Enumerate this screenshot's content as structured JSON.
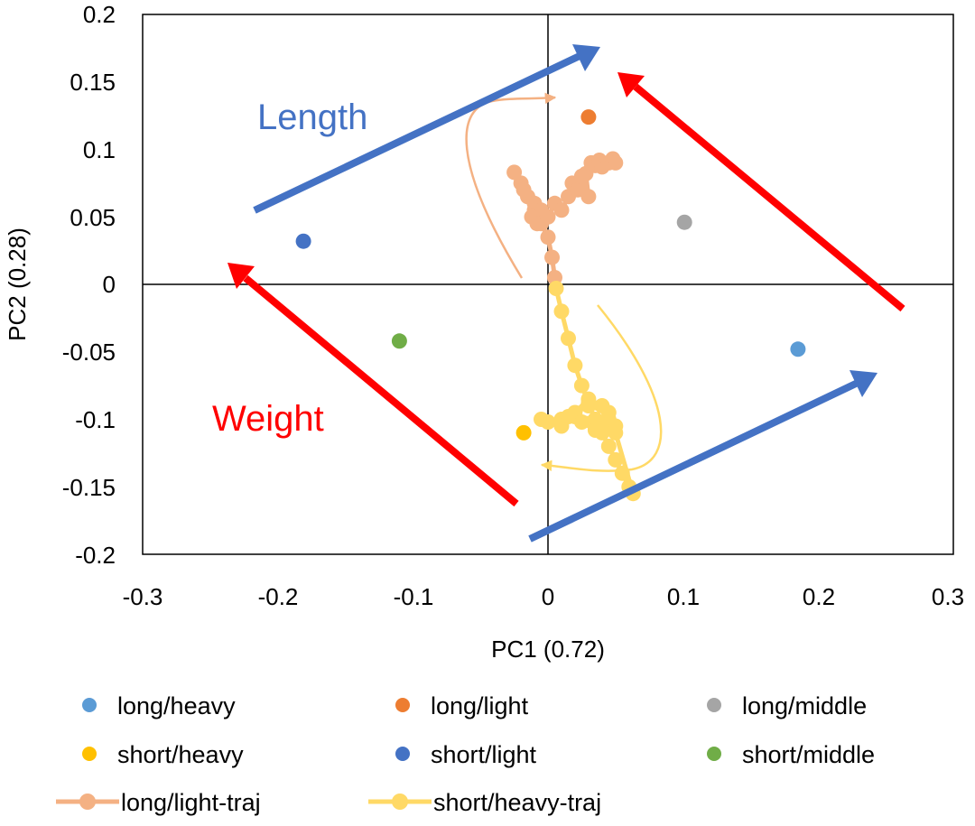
{
  "chart_data": {
    "type": "scatter",
    "xlabel": "PC1 (0.72)",
    "ylabel": "PC2 (0.28)",
    "xlim": [
      -0.3,
      0.3
    ],
    "ylim": [
      -0.2,
      0.2
    ],
    "x_ticks": [
      "-0.3",
      "-0.2",
      "-0.1",
      "0",
      "0.1",
      "0.2",
      "0.3"
    ],
    "y_ticks": [
      "0.2",
      "0.15",
      "0.1",
      "0.05",
      "0",
      "-0.05",
      "-0.1",
      "-0.15",
      "-0.2"
    ],
    "grid": false,
    "legend_position": "bottom",
    "points": [
      {
        "name": "long/heavy",
        "x": 0.185,
        "y": -0.048,
        "color": "#5b9bd5"
      },
      {
        "name": "long/light",
        "x": 0.03,
        "y": 0.124,
        "color": "#ed7d31"
      },
      {
        "name": "long/middle",
        "x": 0.101,
        "y": 0.046,
        "color": "#a5a5a5"
      },
      {
        "name": "short/heavy",
        "x": -0.018,
        "y": -0.11,
        "color": "#ffc000"
      },
      {
        "name": "short/light",
        "x": -0.181,
        "y": 0.032,
        "color": "#4472c4"
      },
      {
        "name": "short/middle",
        "x": -0.11,
        "y": -0.042,
        "color": "#70ad47"
      }
    ],
    "series": [
      {
        "name": "long/light-traj",
        "color": "#f4b183",
        "x": [
          0.005,
          0.003,
          0.0,
          -0.005,
          -0.01,
          -0.015,
          -0.02,
          -0.025,
          -0.018,
          -0.01,
          -0.005,
          -0.012,
          -0.008,
          0.0,
          0.005,
          0.01,
          0.015,
          0.018,
          0.022,
          0.025,
          0.028,
          0.03,
          0.025,
          0.032,
          0.035,
          0.038,
          0.04,
          0.045,
          0.048,
          0.05
        ],
        "y": [
          0.005,
          0.02,
          0.035,
          0.045,
          0.055,
          0.065,
          0.075,
          0.083,
          0.07,
          0.06,
          0.055,
          0.05,
          0.045,
          0.05,
          0.06,
          0.055,
          0.065,
          0.075,
          0.07,
          0.08,
          0.082,
          0.065,
          0.08,
          0.09,
          0.088,
          0.092,
          0.087,
          0.09,
          0.093,
          0.09
        ]
      },
      {
        "name": "short/heavy-traj",
        "color": "#ffd966",
        "x": [
          0.006,
          0.01,
          0.015,
          0.02,
          0.025,
          0.03,
          0.035,
          0.04,
          0.045,
          0.05,
          0.055,
          0.06,
          0.063,
          0.05,
          0.035,
          0.02,
          0.01,
          0.0,
          -0.005,
          0.01,
          0.02,
          0.03,
          0.04,
          0.045,
          0.05,
          0.035,
          0.025,
          0.015,
          0.03,
          0.045
        ],
        "y": [
          -0.003,
          -0.02,
          -0.04,
          -0.06,
          -0.075,
          -0.088,
          -0.1,
          -0.11,
          -0.12,
          -0.13,
          -0.14,
          -0.15,
          -0.155,
          -0.11,
          -0.1,
          -0.098,
          -0.1,
          -0.102,
          -0.1,
          -0.105,
          -0.095,
          -0.085,
          -0.09,
          -0.1,
          -0.105,
          -0.108,
          -0.102,
          -0.098,
          -0.09,
          -0.095
        ]
      }
    ],
    "annotations": [
      {
        "text": "Length",
        "color": "#4472c4"
      },
      {
        "text": "Weight",
        "color": "#ff0000"
      }
    ],
    "legend": [
      {
        "label": "long/heavy",
        "kind": "marker",
        "color": "#5b9bd5"
      },
      {
        "label": "long/light",
        "kind": "marker",
        "color": "#ed7d31"
      },
      {
        "label": "long/middle",
        "kind": "marker",
        "color": "#a5a5a5"
      },
      {
        "label": "short/heavy",
        "kind": "marker",
        "color": "#ffc000"
      },
      {
        "label": "short/light",
        "kind": "marker",
        "color": "#4472c4"
      },
      {
        "label": "short/middle",
        "kind": "marker",
        "color": "#70ad47"
      },
      {
        "label": "long/light-traj",
        "kind": "line",
        "color": "#f4b183"
      },
      {
        "label": "short/heavy-traj",
        "kind": "line",
        "color": "#ffd966"
      }
    ]
  }
}
